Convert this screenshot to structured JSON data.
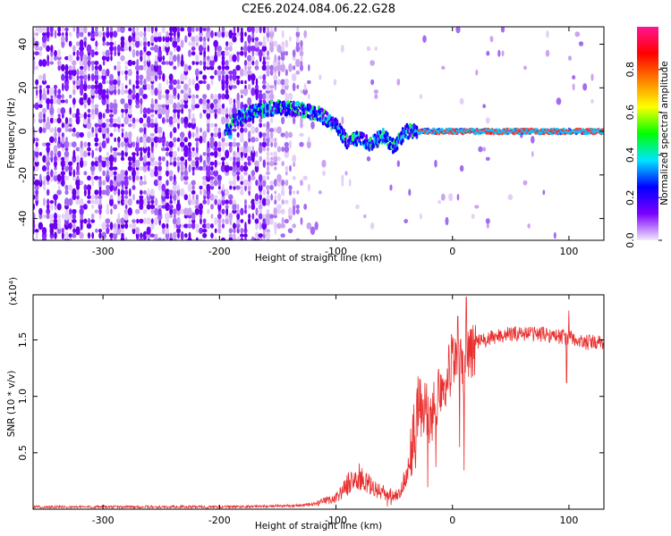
{
  "title": "C2E6.2024.084.06.22.G28",
  "chart_data": [
    {
      "type": "heatmap",
      "xlabel": "Height of straight line (km)",
      "ylabel": "Frequency (Hz)",
      "xlim": [
        -360,
        130
      ],
      "ylim": [
        -50,
        48
      ],
      "xticks": [
        -300,
        -200,
        -100,
        0,
        100
      ],
      "yticks": [
        -40,
        -20,
        0,
        20,
        40
      ],
      "colorbar": {
        "label": "Normalized spectral amplitude",
        "range": [
          0.0,
          1.0
        ],
        "ticks": [
          "0.0",
          "0.2",
          "0.4",
          "0.6",
          "0.8"
        ],
        "colors": [
          "#f2e8fb",
          "#7b00ff",
          "#0000ff",
          "#00e5ff",
          "#00ff00",
          "#ffff00",
          "#ff8000",
          "#ff0000",
          "#ff1493"
        ]
      },
      "ridge": {
        "x": [
          -190,
          -170,
          -150,
          -130,
          -115,
          -100,
          -90,
          -80,
          -70,
          -60,
          -50,
          -40,
          -20,
          0,
          50,
          100,
          130
        ],
        "y": [
          5,
          9,
          11,
          10,
          8,
          3,
          -5,
          -3,
          -6,
          -2,
          -7,
          0,
          0,
          0,
          0,
          0,
          0
        ]
      }
    },
    {
      "type": "line",
      "xlabel": "Height of straight line (km)",
      "ylabel": "SNR (10 * v/v)",
      "yscale_note": "(x10⁴)",
      "xlim": [
        -360,
        130
      ],
      "ylim": [
        0,
        1.9
      ],
      "xticks": [
        -300,
        -200,
        -100,
        0,
        100
      ],
      "yticks": [
        "0.5",
        "1.0",
        "1.5"
      ],
      "ytick_values": [
        0.5,
        1.0,
        1.5
      ],
      "color": "#e8302f",
      "series": [
        {
          "x": [
            -360,
            -300,
            -200,
            -140,
            -120,
            -100,
            -90,
            -85,
            -80,
            -70,
            -60,
            -50,
            -45,
            -40,
            -35,
            -30,
            -25,
            -20,
            -15,
            -10,
            -5,
            0,
            5,
            10,
            15,
            20,
            30,
            40,
            50,
            60,
            80,
            100,
            110,
            130
          ],
          "y": [
            0.02,
            0.02,
            0.02,
            0.03,
            0.04,
            0.1,
            0.22,
            0.26,
            0.28,
            0.2,
            0.15,
            0.12,
            0.16,
            0.3,
            0.55,
            0.9,
            0.95,
            0.75,
            0.95,
            1.1,
            1.2,
            1.3,
            1.45,
            1.25,
            1.4,
            1.48,
            1.5,
            1.54,
            1.55,
            1.56,
            1.55,
            1.52,
            1.48,
            1.47
          ]
        }
      ],
      "spike": {
        "x": 12,
        "y": 1.88
      }
    }
  ]
}
